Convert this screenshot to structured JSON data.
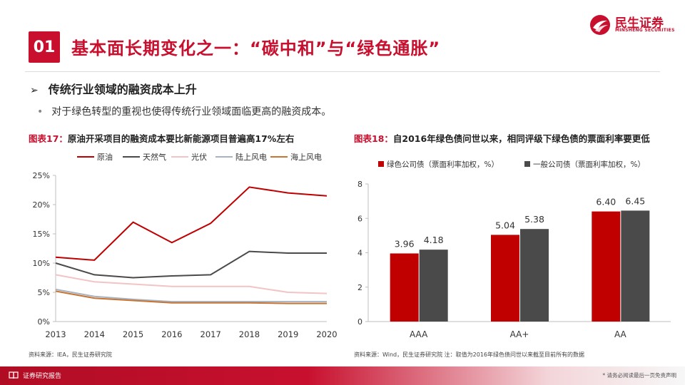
{
  "header": {
    "number": "01",
    "title": "基本面长期变化之一：“碳中和”与“绿色通胀”",
    "logo_text": "民生证券",
    "logo_sub": "MINSHENG SECURITIES"
  },
  "section": {
    "subhead": "传统行业领域的融资成本上升",
    "bullet": "对于绿色转型的重视也使得传统行业领域面临更高的融资成本。"
  },
  "figure17": {
    "label": "图表17：",
    "title": "原油开采项目的融资成本要比新能源项目普遍高17%左右",
    "source": "资料来源：IEA，民生证券研究院"
  },
  "figure18": {
    "label": "图表18：",
    "title": "自2016年绿色债问世以来，相同评级下绿色债的票面利率要更低",
    "source": "资料来源：Wind，民生证券研究院   注：取值为2016年绿色债问世以来截至目前所有的数据"
  },
  "footer": {
    "left": "证券研究报告",
    "right": "* 请务必阅读最后一页免责声明"
  },
  "chart_data": [
    {
      "type": "line",
      "x": [
        "2013",
        "2014",
        "2015",
        "2016",
        "2017",
        "2018",
        "2019",
        "2020"
      ],
      "ylim": [
        0,
        25
      ],
      "yticks": [
        "0%",
        "5%",
        "10%",
        "15%",
        "20%",
        "25%"
      ],
      "legend_position": "top",
      "grid": false,
      "series": [
        {
          "name": "原油",
          "color": "#c00000",
          "values": [
            11.0,
            10.5,
            17.0,
            13.5,
            16.8,
            23.0,
            22.0,
            21.5
          ]
        },
        {
          "name": "天然气",
          "color": "#4a4a4a",
          "values": [
            10.0,
            8.0,
            7.5,
            7.8,
            8.0,
            12.0,
            11.7,
            11.7
          ]
        },
        {
          "name": "光伏",
          "color": "#f2c4c4",
          "values": [
            8.0,
            6.8,
            6.4,
            6.0,
            6.0,
            6.0,
            5.0,
            4.8
          ]
        },
        {
          "name": "陆上风电",
          "color": "#a6b3c2",
          "values": [
            5.5,
            4.3,
            3.8,
            3.4,
            3.4,
            3.4,
            3.4,
            3.4
          ]
        },
        {
          "name": "海上风电",
          "color": "#c87533",
          "values": [
            5.2,
            4.0,
            3.6,
            3.2,
            3.2,
            3.2,
            3.1,
            3.1
          ]
        }
      ]
    },
    {
      "type": "bar",
      "categories": [
        "AAA",
        "AA+",
        "AA"
      ],
      "ylim": [
        0,
        8
      ],
      "yticks": [
        "0",
        "2",
        "4",
        "6",
        "8"
      ],
      "legend_position": "top",
      "grid": false,
      "series": [
        {
          "name": "绿色公司债（票面利率加权，%）",
          "color": "#c00000",
          "values": [
            3.96,
            5.04,
            6.4
          ],
          "labels": [
            "3.96",
            "5.04",
            "6.40"
          ]
        },
        {
          "name": "一般公司债（票面利率加权，%）",
          "color": "#4a4a4a",
          "values": [
            4.18,
            5.38,
            6.45
          ],
          "labels": [
            "4.18",
            "5.38",
            "6.45"
          ]
        }
      ]
    }
  ]
}
